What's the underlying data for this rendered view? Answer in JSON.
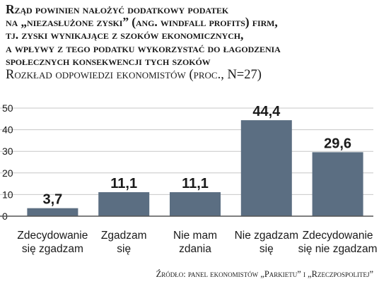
{
  "title_lines": [
    "Rząd powinien nałożyć dodatkowy podatek",
    "na „niezasłużone zyski” (ang. windfall profits) firm,",
    "tj. zyski wynikające z szoków ekonomicznych,",
    "a wpływy z tego podatku wykorzystać do łagodzenia",
    "społecznych konsekwencji tych szoków"
  ],
  "subtitle": "Rozkład odpowiedzi ekonomistów (proc., N=27)",
  "source": "Źródło: panel ekonomistów „Parkietu” i „Rzeczpospolitej”",
  "colors": {
    "bar": "#5b6e82",
    "grid": "#c7c7c7",
    "axis": "#555555",
    "text": "#1a1a1a"
  },
  "chart_data": {
    "type": "bar",
    "categories": [
      [
        "Zdecydowanie",
        "się zgadzam"
      ],
      [
        "Zgadzam",
        "się"
      ],
      [
        "Nie mam",
        "zdania"
      ],
      [
        "Nie zgadzam",
        "się"
      ],
      [
        "Zdecydowanie",
        "się nie zgadzam"
      ]
    ],
    "values": [
      3.7,
      11.1,
      11.1,
      44.4,
      29.6
    ],
    "value_labels": [
      "3,7",
      "11,1",
      "11,1",
      "44,4",
      "29,6"
    ],
    "yticks": [
      0,
      10,
      20,
      30,
      40,
      50
    ],
    "ylim": [
      0,
      50
    ],
    "grid": true,
    "legend": false
  }
}
